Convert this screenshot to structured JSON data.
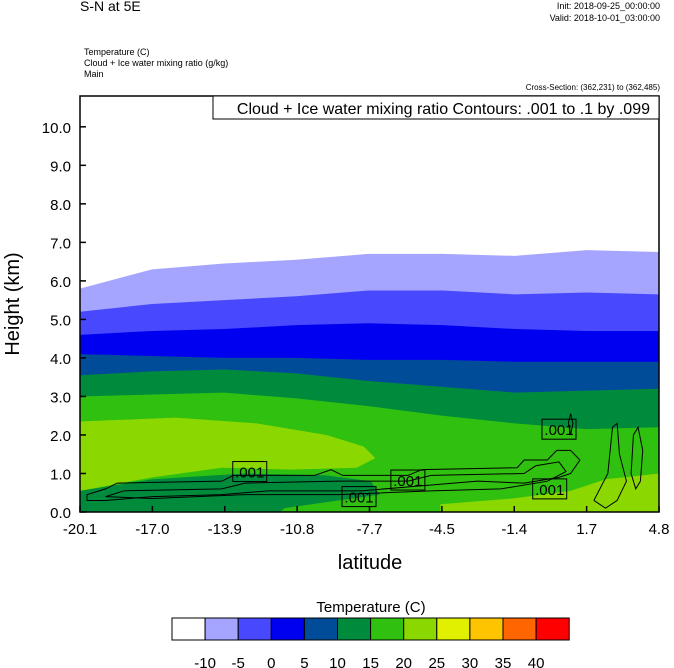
{
  "header": {
    "title": "S-N at 5E",
    "init": "Init: 2018-09-25_00:00:00",
    "valid": "Valid: 2018-10-01_03:00:00",
    "fields": [
      "Temperature   (C)",
      "Cloud + Ice water mixing ratio   (g/kg)",
      "Main"
    ],
    "cross_section": "Cross-Section: (362,231) to (362,485)"
  },
  "chart_data": {
    "type": "heatmap",
    "title": "S-N at 5E",
    "xlabel": "latitude",
    "ylabel": "Height (km)",
    "xlim": [
      -20.1,
      4.8
    ],
    "ylim": [
      0,
      10.8
    ],
    "xticks": [
      "-20.1",
      "-17.0",
      "-13.9",
      "-10.8",
      "-7.7",
      "-4.5",
      "-1.4",
      "1.7",
      "4.8"
    ],
    "yticks": [
      "0.0",
      "1.0",
      "2.0",
      "3.0",
      "4.0",
      "5.0",
      "6.0",
      "7.0",
      "8.0",
      "9.0",
      "10.0"
    ],
    "legend_text": "Cloud + Ice water mixing ratio Contours: .001 to .1 by .099",
    "colorbar": {
      "title": "Temperature  (C)",
      "labels": [
        "-10",
        "-5",
        "0",
        "5",
        "10",
        "15",
        "20",
        "25",
        "30",
        "35",
        "40"
      ],
      "colors": [
        "#ffffff",
        "#a5a5ff",
        "#4848ff",
        "#0000f0",
        "#004c98",
        "#008b3c",
        "#30c010",
        "#8ad800",
        "#e0f000",
        "#ffc400",
        "#ff6600",
        "#ff0000"
      ]
    },
    "isotherm_lats": [
      -20.1,
      -17.0,
      -13.9,
      -10.8,
      -7.7,
      -4.5,
      -1.4,
      1.7,
      4.8
    ],
    "isotherms": [
      {
        "level": -10,
        "fill_below": "#a5a5ff",
        "heights": [
          5.8,
          6.3,
          6.45,
          6.55,
          6.7,
          6.7,
          6.65,
          6.8,
          6.75
        ]
      },
      {
        "level": -5,
        "fill_below": "#4848ff",
        "heights": [
          5.2,
          5.4,
          5.5,
          5.6,
          5.75,
          5.75,
          5.65,
          5.7,
          5.65
        ]
      },
      {
        "level": 0,
        "fill_below": "#0000f0",
        "heights": [
          4.6,
          4.7,
          4.75,
          4.85,
          4.9,
          4.85,
          4.75,
          4.7,
          4.7
        ]
      },
      {
        "level": 5,
        "fill_below": "#004c98",
        "heights": [
          4.1,
          4.05,
          4.0,
          4.0,
          3.95,
          3.95,
          3.9,
          3.9,
          3.9
        ]
      },
      {
        "level": 10,
        "fill_below": "#008b3c",
        "heights": [
          3.55,
          3.65,
          3.7,
          3.6,
          3.4,
          3.25,
          3.1,
          3.15,
          3.2
        ]
      },
      {
        "level": 15,
        "fill_below": "#30c010",
        "heights": [
          3.0,
          3.05,
          3.1,
          2.95,
          2.75,
          2.5,
          2.3,
          2.15,
          2.2
        ]
      }
    ],
    "patches": [
      {
        "temp_range": "20-25",
        "color": "#8ad800",
        "points": [
          [
            -20.1,
            2.35
          ],
          [
            -16,
            2.45
          ],
          [
            -12.5,
            2.3
          ],
          [
            -9.5,
            2.0
          ],
          [
            -7.9,
            1.7
          ],
          [
            -7.4,
            1.4
          ],
          [
            -8.2,
            1.15
          ],
          [
            -11,
            1.1
          ],
          [
            -14,
            1.15
          ],
          [
            -17,
            0.9
          ],
          [
            -20.1,
            0.55
          ]
        ]
      },
      {
        "temp_range": "10-15",
        "color": "#008b3c",
        "points": [
          [
            -20.1,
            0
          ],
          [
            -20.1,
            0.55
          ],
          [
            -17,
            0.85
          ],
          [
            -13,
            1.0
          ],
          [
            -9.5,
            0.95
          ],
          [
            -7.6,
            0.8
          ],
          [
            -7.2,
            0.45
          ],
          [
            -9,
            0.3
          ],
          [
            -11.3,
            0.1
          ],
          [
            -11.5,
            0
          ]
        ]
      },
      {
        "temp_range": "20-25",
        "color": "#8ad800",
        "points": [
          [
            -4.6,
            0
          ],
          [
            -4.6,
            0.2
          ],
          [
            -1.5,
            0.35
          ],
          [
            1,
            0.55
          ],
          [
            2.5,
            0.85
          ],
          [
            4.8,
            1.0
          ],
          [
            4.8,
            0
          ]
        ]
      }
    ],
    "contour_level": 0.001,
    "contours": [
      [
        [
          -19.8,
          0.3
        ],
        [
          -19.8,
          0.45
        ],
        [
          -19,
          0.6
        ],
        [
          -18.5,
          0.75
        ],
        [
          -14,
          0.8
        ],
        [
          -13.5,
          0.95
        ],
        [
          -10,
          0.95
        ],
        [
          -9.3,
          1.1
        ],
        [
          -8.8,
          0.95
        ],
        [
          -6,
          0.95
        ],
        [
          -5.4,
          1.1
        ],
        [
          -1.3,
          1.15
        ],
        [
          -1,
          1.35
        ],
        [
          0,
          1.35
        ],
        [
          0.4,
          1.6
        ],
        [
          1,
          1.6
        ],
        [
          1.4,
          1.35
        ],
        [
          1.0,
          1.0
        ],
        [
          0.5,
          0.9
        ],
        [
          -1,
          0.75
        ],
        [
          -3,
          0.8
        ],
        [
          -5,
          0.7
        ],
        [
          -8,
          0.55
        ],
        [
          -12,
          0.55
        ],
        [
          -14,
          0.45
        ],
        [
          -17,
          0.4
        ],
        [
          -19,
          0.3
        ],
        [
          -19.8,
          0.3
        ]
      ],
      [
        [
          -19,
          0.4
        ],
        [
          -18.2,
          0.55
        ],
        [
          -14,
          0.6
        ],
        [
          -13,
          0.75
        ],
        [
          -9,
          0.8
        ],
        [
          -6,
          0.8
        ],
        [
          -5,
          0.95
        ],
        [
          -1,
          1.0
        ],
        [
          -0.5,
          1.2
        ],
        [
          0.5,
          1.3
        ],
        [
          0.8,
          1.05
        ],
        [
          0,
          0.8
        ],
        [
          -2,
          0.6
        ],
        [
          -5,
          0.55
        ],
        [
          -9,
          0.45
        ],
        [
          -13,
          0.45
        ],
        [
          -17,
          0.35
        ],
        [
          -19,
          0.4
        ]
      ],
      [
        [
          0.9,
          2.3
        ],
        [
          1.0,
          2.0
        ],
        [
          1.1,
          2.3
        ],
        [
          1.0,
          2.55
        ],
        [
          0.9,
          2.3
        ]
      ],
      [
        [
          2.0,
          0.3
        ],
        [
          2.6,
          1.0
        ],
        [
          2.8,
          2.2
        ],
        [
          3.0,
          2.3
        ],
        [
          3.1,
          1.5
        ],
        [
          3.4,
          0.8
        ],
        [
          3.0,
          0.3
        ],
        [
          2.5,
          0.1
        ],
        [
          2.0,
          0.3
        ]
      ],
      [
        [
          3.6,
          1.0
        ],
        [
          3.7,
          2.0
        ],
        [
          3.9,
          2.2
        ],
        [
          4.1,
          1.6
        ],
        [
          4.0,
          0.8
        ],
        [
          3.8,
          0.6
        ],
        [
          3.6,
          1.0
        ]
      ]
    ],
    "contour_labels": [
      {
        "text": ".001",
        "lat": -12.8,
        "km": 1.05
      },
      {
        "text": ".001",
        "lat": -8.1,
        "km": 0.4
      },
      {
        "text": ".001",
        "lat": -6.0,
        "km": 0.83
      },
      {
        "text": ".001",
        "lat": 0.5,
        "km": 2.15
      },
      {
        "text": ".001",
        "lat": 0.1,
        "km": 0.6
      }
    ]
  }
}
